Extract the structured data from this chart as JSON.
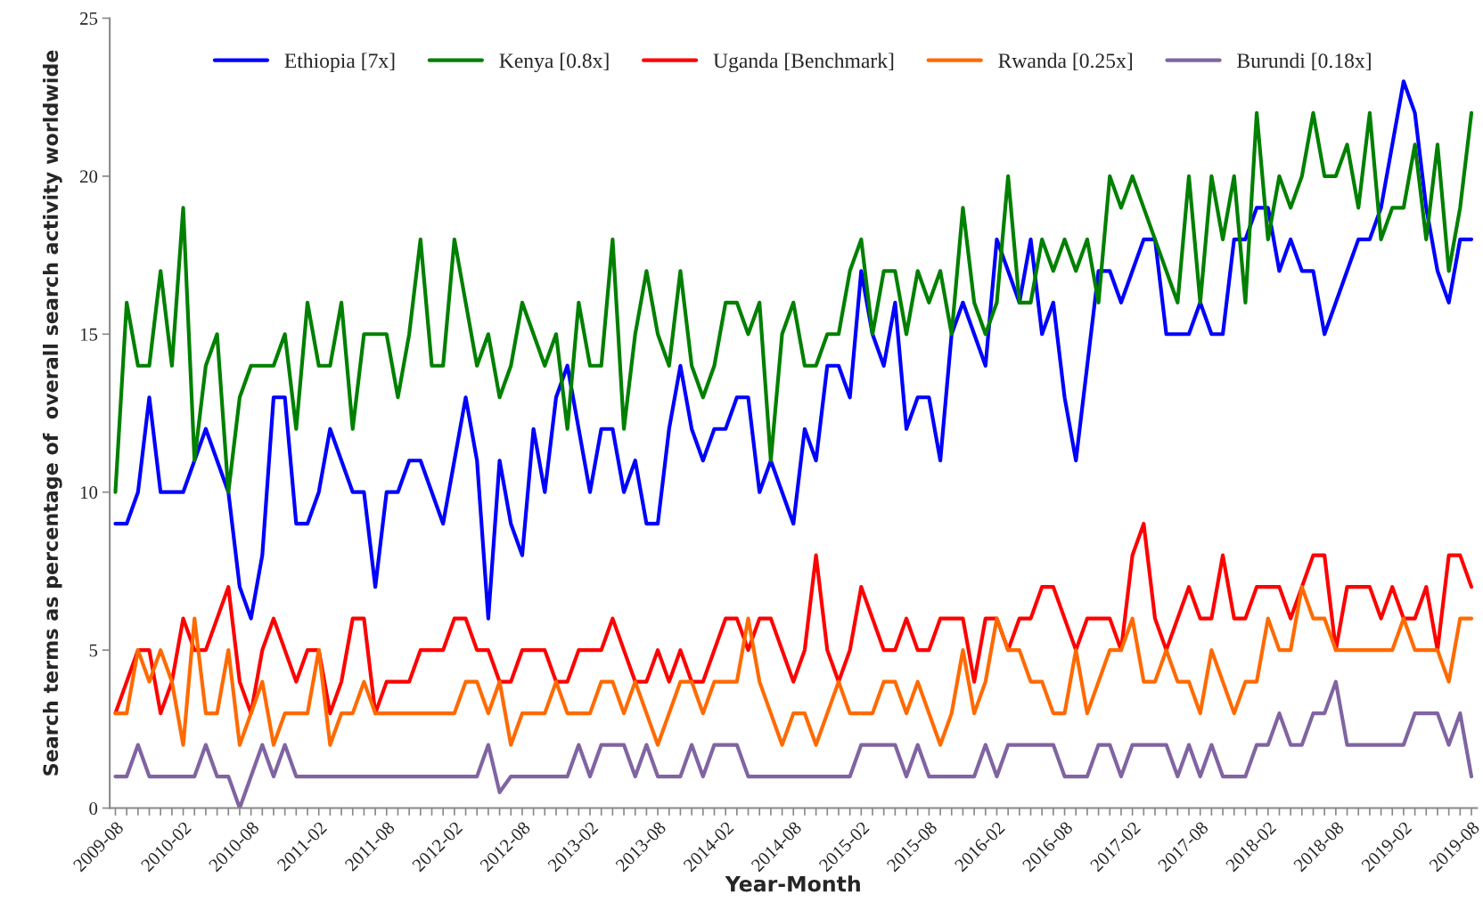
{
  "chart_data": {
    "type": "line",
    "xlabel": "Year-Month",
    "ylabel": "Search terms as percentage of  overall search activity worldwide",
    "categories": [
      "2009-08",
      null,
      null,
      null,
      null,
      null,
      "2010-02",
      null,
      null,
      null,
      null,
      null,
      "2010-08",
      null,
      null,
      null,
      null,
      null,
      "2011-02",
      null,
      null,
      null,
      null,
      null,
      "2011-08",
      null,
      null,
      null,
      null,
      null,
      "2012-02",
      null,
      null,
      null,
      null,
      null,
      "2012-08",
      null,
      null,
      null,
      null,
      null,
      "2013-02",
      null,
      null,
      null,
      null,
      null,
      "2013-08",
      null,
      null,
      null,
      null,
      null,
      "2014-02",
      null,
      null,
      null,
      null,
      null,
      "2014-08",
      null,
      null,
      null,
      null,
      null,
      "2015-02",
      null,
      null,
      null,
      null,
      null,
      "2015-08",
      null,
      null,
      null,
      null,
      null,
      "2016-02",
      null,
      null,
      null,
      null,
      null,
      "2016-08",
      null,
      null,
      null,
      null,
      null,
      "2017-02",
      null,
      null,
      null,
      null,
      null,
      "2017-08",
      null,
      null,
      null,
      null,
      null,
      "2018-02",
      null,
      null,
      null,
      null,
      null,
      "2018-08",
      null,
      null,
      null,
      null,
      null,
      "2019-02",
      null,
      null,
      null,
      null,
      null,
      "2019-08"
    ],
    "series": [
      {
        "name": "Ethiopia [7x]",
        "color": "#0000ff",
        "values": [
          9,
          9,
          10,
          13,
          10,
          10,
          10,
          11,
          12,
          11,
          10,
          7,
          6,
          8,
          13,
          13,
          9,
          9,
          10,
          12,
          11,
          10,
          10,
          7,
          10,
          10,
          11,
          11,
          10,
          9,
          11,
          13,
          11,
          6,
          11,
          9,
          8,
          12,
          10,
          13,
          14,
          12,
          10,
          12,
          12,
          10,
          11,
          9,
          9,
          12,
          14,
          12,
          11,
          12,
          12,
          13,
          13,
          10,
          11,
          10,
          9,
          12,
          11,
          14,
          14,
          13,
          17,
          15,
          14,
          16,
          12,
          13,
          13,
          11,
          15,
          16,
          15,
          14,
          18,
          17,
          16,
          18,
          15,
          16,
          13,
          11,
          14,
          17,
          17,
          16,
          17,
          18,
          18,
          15,
          15,
          15,
          16,
          15,
          15,
          18,
          18,
          19,
          19,
          17,
          18,
          17,
          17,
          15,
          16,
          17,
          18,
          18,
          19,
          21,
          23,
          22,
          19,
          17,
          16,
          18,
          18
        ]
      },
      {
        "name": "Kenya [0.8x]",
        "color": "#008000",
        "values": [
          10,
          16,
          14,
          14,
          17,
          14,
          19,
          11,
          14,
          15,
          10,
          13,
          14,
          14,
          14,
          15,
          12,
          16,
          14,
          14,
          16,
          12,
          15,
          15,
          15,
          13,
          15,
          18,
          14,
          14,
          18,
          16,
          14,
          15,
          13,
          14,
          16,
          15,
          14,
          15,
          12,
          16,
          14,
          14,
          18,
          12,
          15,
          17,
          15,
          14,
          17,
          14,
          13,
          14,
          16,
          16,
          15,
          16,
          11,
          15,
          16,
          14,
          14,
          15,
          15,
          17,
          18,
          15,
          17,
          17,
          15,
          17,
          16,
          17,
          15,
          19,
          16,
          15,
          16,
          20,
          16,
          16,
          18,
          17,
          18,
          17,
          18,
          16,
          20,
          19,
          20,
          19,
          18,
          17,
          16,
          20,
          16,
          20,
          18,
          20,
          16,
          22,
          18,
          20,
          19,
          20,
          22,
          20,
          20,
          21,
          19,
          22,
          18,
          19,
          19,
          21,
          18,
          21,
          17,
          19,
          22
        ]
      },
      {
        "name": "Uganda [Benchmark]",
        "color": "#ff0000",
        "values": [
          3,
          4,
          5,
          5,
          3,
          4,
          6,
          5,
          5,
          6,
          7,
          4,
          3,
          5,
          6,
          5,
          4,
          5,
          5,
          3,
          4,
          6,
          6,
          3,
          4,
          4,
          4,
          5,
          5,
          5,
          6,
          6,
          5,
          5,
          4,
          4,
          5,
          5,
          5,
          4,
          4,
          5,
          5,
          5,
          6,
          5,
          4,
          4,
          5,
          4,
          5,
          4,
          4,
          5,
          6,
          6,
          5,
          6,
          6,
          5,
          4,
          5,
          8,
          5,
          4,
          5,
          7,
          6,
          5,
          5,
          6,
          5,
          5,
          6,
          6,
          6,
          4,
          6,
          6,
          5,
          6,
          6,
          7,
          7,
          6,
          5,
          6,
          6,
          6,
          5,
          8,
          9,
          6,
          5,
          6,
          7,
          6,
          6,
          8,
          6,
          6,
          7,
          7,
          7,
          6,
          7,
          8,
          8,
          5,
          7,
          7,
          7,
          6,
          7,
          6,
          6,
          7,
          5,
          8,
          8,
          7
        ]
      },
      {
        "name": "Rwanda [0.25x]",
        "color": "#ff6a00",
        "values": [
          3,
          3,
          5,
          4,
          5,
          4,
          2,
          6,
          3,
          3,
          5,
          2,
          3,
          4,
          2,
          3,
          3,
          3,
          5,
          2,
          3,
          3,
          4,
          3,
          3,
          3,
          3,
          3,
          3,
          3,
          3,
          4,
          4,
          3,
          4,
          2,
          3,
          3,
          3,
          4,
          3,
          3,
          3,
          4,
          4,
          3,
          4,
          3,
          2,
          3,
          4,
          4,
          3,
          4,
          4,
          4,
          6,
          4,
          3,
          2,
          3,
          3,
          2,
          3,
          4,
          3,
          3,
          3,
          4,
          4,
          3,
          4,
          3,
          2,
          3,
          5,
          3,
          4,
          6,
          5,
          5,
          4,
          4,
          3,
          3,
          5,
          3,
          4,
          5,
          5,
          6,
          4,
          4,
          5,
          4,
          4,
          3,
          5,
          4,
          3,
          4,
          4,
          6,
          5,
          5,
          7,
          6,
          6,
          5,
          5,
          5,
          5,
          5,
          5,
          6,
          5,
          5,
          5,
          4,
          6,
          6
        ]
      },
      {
        "name": "Burundi [0.18x]",
        "color": "#8064a2",
        "values": [
          1,
          1,
          2,
          1,
          1,
          1,
          1,
          1,
          2,
          1,
          1,
          0,
          1,
          2,
          1,
          2,
          1,
          1,
          1,
          1,
          1,
          1,
          1,
          1,
          1,
          1,
          1,
          1,
          1,
          1,
          1,
          1,
          1,
          2,
          0.5,
          1,
          1,
          1,
          1,
          1,
          1,
          2,
          1,
          2,
          2,
          2,
          1,
          2,
          1,
          1,
          1,
          2,
          1,
          2,
          2,
          2,
          1,
          1,
          1,
          1,
          1,
          1,
          1,
          1,
          1,
          1,
          2,
          2,
          2,
          2,
          1,
          2,
          1,
          1,
          1,
          1,
          1,
          2,
          1,
          2,
          2,
          2,
          2,
          2,
          1,
          1,
          1,
          2,
          2,
          1,
          2,
          2,
          2,
          2,
          1,
          2,
          1,
          2,
          1,
          1,
          1,
          2,
          2,
          3,
          2,
          2,
          3,
          3,
          4,
          2,
          2,
          2,
          2,
          2,
          2,
          3,
          3,
          3,
          2,
          3,
          1
        ]
      }
    ],
    "ylim": [
      0,
      25
    ],
    "yticks": [
      0,
      5,
      10,
      15,
      20,
      25
    ],
    "grid": false,
    "legend": "top",
    "marker": "none",
    "line_style": "solid"
  }
}
